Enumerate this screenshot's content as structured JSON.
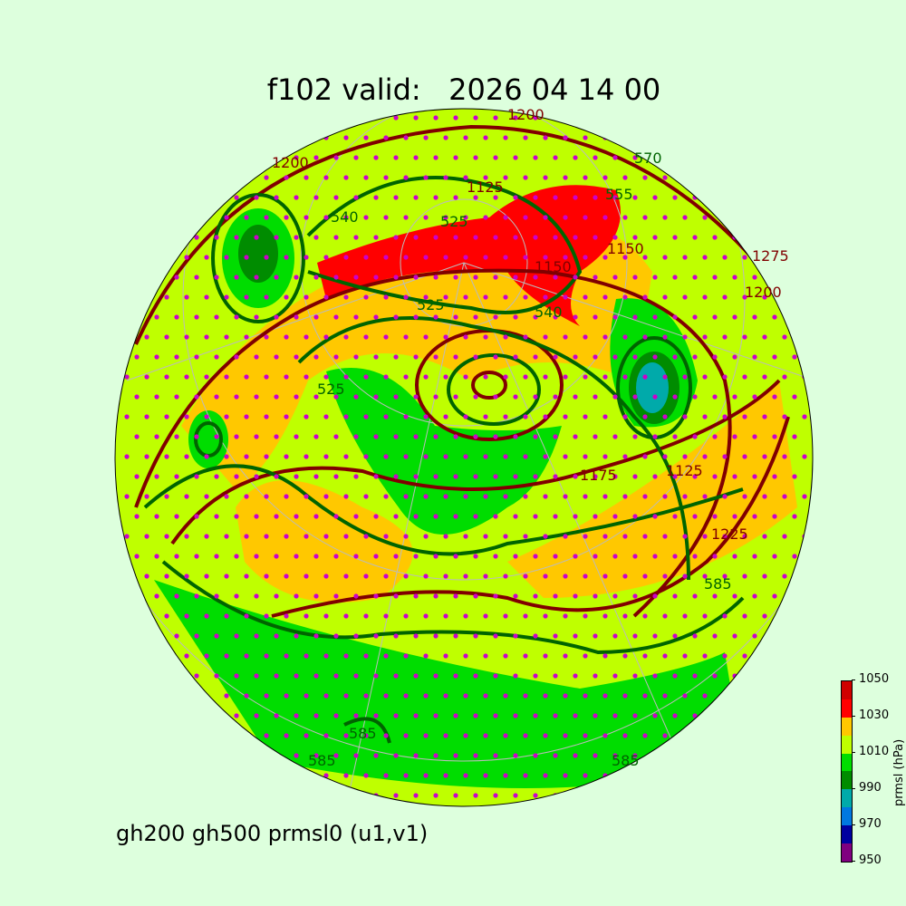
{
  "title": "f102 valid:   2026 04 14 00",
  "subtitle": "gh200 gh500 prmsl0 (u1,v1)",
  "colorbar": {
    "label": "prmsl (hPa)",
    "ticks": [
      "950",
      "970",
      "990",
      "1010",
      "1030",
      "1050"
    ],
    "levels": [
      950,
      960,
      970,
      980,
      990,
      1000,
      1010,
      1020,
      1030,
      1040,
      1050
    ],
    "colors": [
      "#800080",
      "#0000a0",
      "#0078e0",
      "#00aaaa",
      "#008c00",
      "#00dd00",
      "#bfff00",
      "#ffc800",
      "#ff0000",
      "#d00000"
    ]
  },
  "contour_colors": {
    "gh200": "#800000",
    "gh500": "#006400",
    "wind_dot": "#cc00cc"
  },
  "contour_labels": {
    "gh200": [
      "1200",
      "1200",
      "1150",
      "1150",
      "1125",
      "1125",
      "1175",
      "1225",
      "1275",
      "1200"
    ],
    "gh500": [
      "540",
      "525",
      "525",
      "570",
      "555",
      "525",
      "585",
      "585",
      "585",
      "585",
      "540"
    ]
  }
}
